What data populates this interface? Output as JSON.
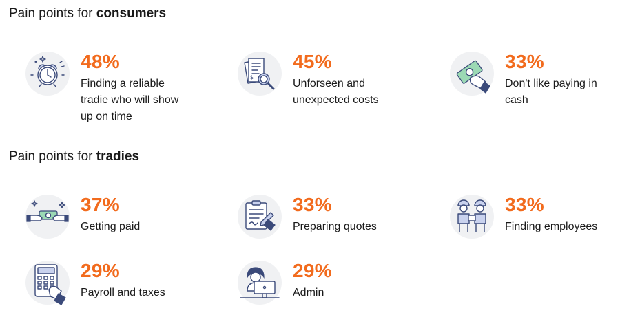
{
  "sections": {
    "consumers": {
      "title_prefix": "Pain points for ",
      "title_bold": "consumers",
      "items": [
        {
          "percent": "48%",
          "label": "Finding a reliable tradie who will show up on time",
          "icon": "alarm-clock-icon"
        },
        {
          "percent": "45%",
          "label": "Unforseen and unexpected costs",
          "icon": "invoice-magnifier-icon"
        },
        {
          "percent": "33%",
          "label": "Don't like paying in cash",
          "icon": "cash-in-hand-icon"
        }
      ]
    },
    "tradies": {
      "title_prefix": "Pain points for ",
      "title_bold": "tradies",
      "items": [
        {
          "percent": "37%",
          "label": "Getting paid",
          "icon": "money-handover-icon"
        },
        {
          "percent": "33%",
          "label": "Preparing quotes",
          "icon": "clipboard-pen-icon"
        },
        {
          "percent": "33%",
          "label": "Finding employees",
          "icon": "workers-icon"
        },
        {
          "percent": "29%",
          "label": "Payroll and taxes",
          "icon": "calculator-icon"
        },
        {
          "percent": "29%",
          "label": "Admin",
          "icon": "computer-desk-icon"
        }
      ]
    }
  },
  "colors": {
    "accent": "#f26b1d",
    "icon_stroke": "#3b4a7a",
    "icon_bg": "#f0f1f3"
  }
}
